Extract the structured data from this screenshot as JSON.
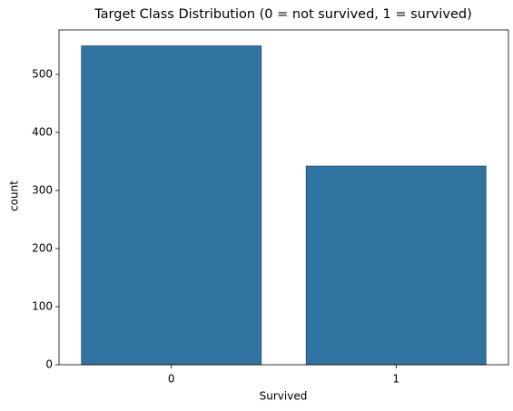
{
  "chart_data": {
    "type": "bar",
    "title": "Target Class Distribution (0 = not survived, 1 = survived)",
    "x_label": "Survived",
    "y_label": "count",
    "categories": [
      "0",
      "1"
    ],
    "values": [
      549,
      342
    ],
    "color": "#3274a1",
    "ylim": [
      0,
      576.45
    ],
    "yticks": [
      0,
      100,
      200,
      300,
      400,
      500
    ]
  }
}
